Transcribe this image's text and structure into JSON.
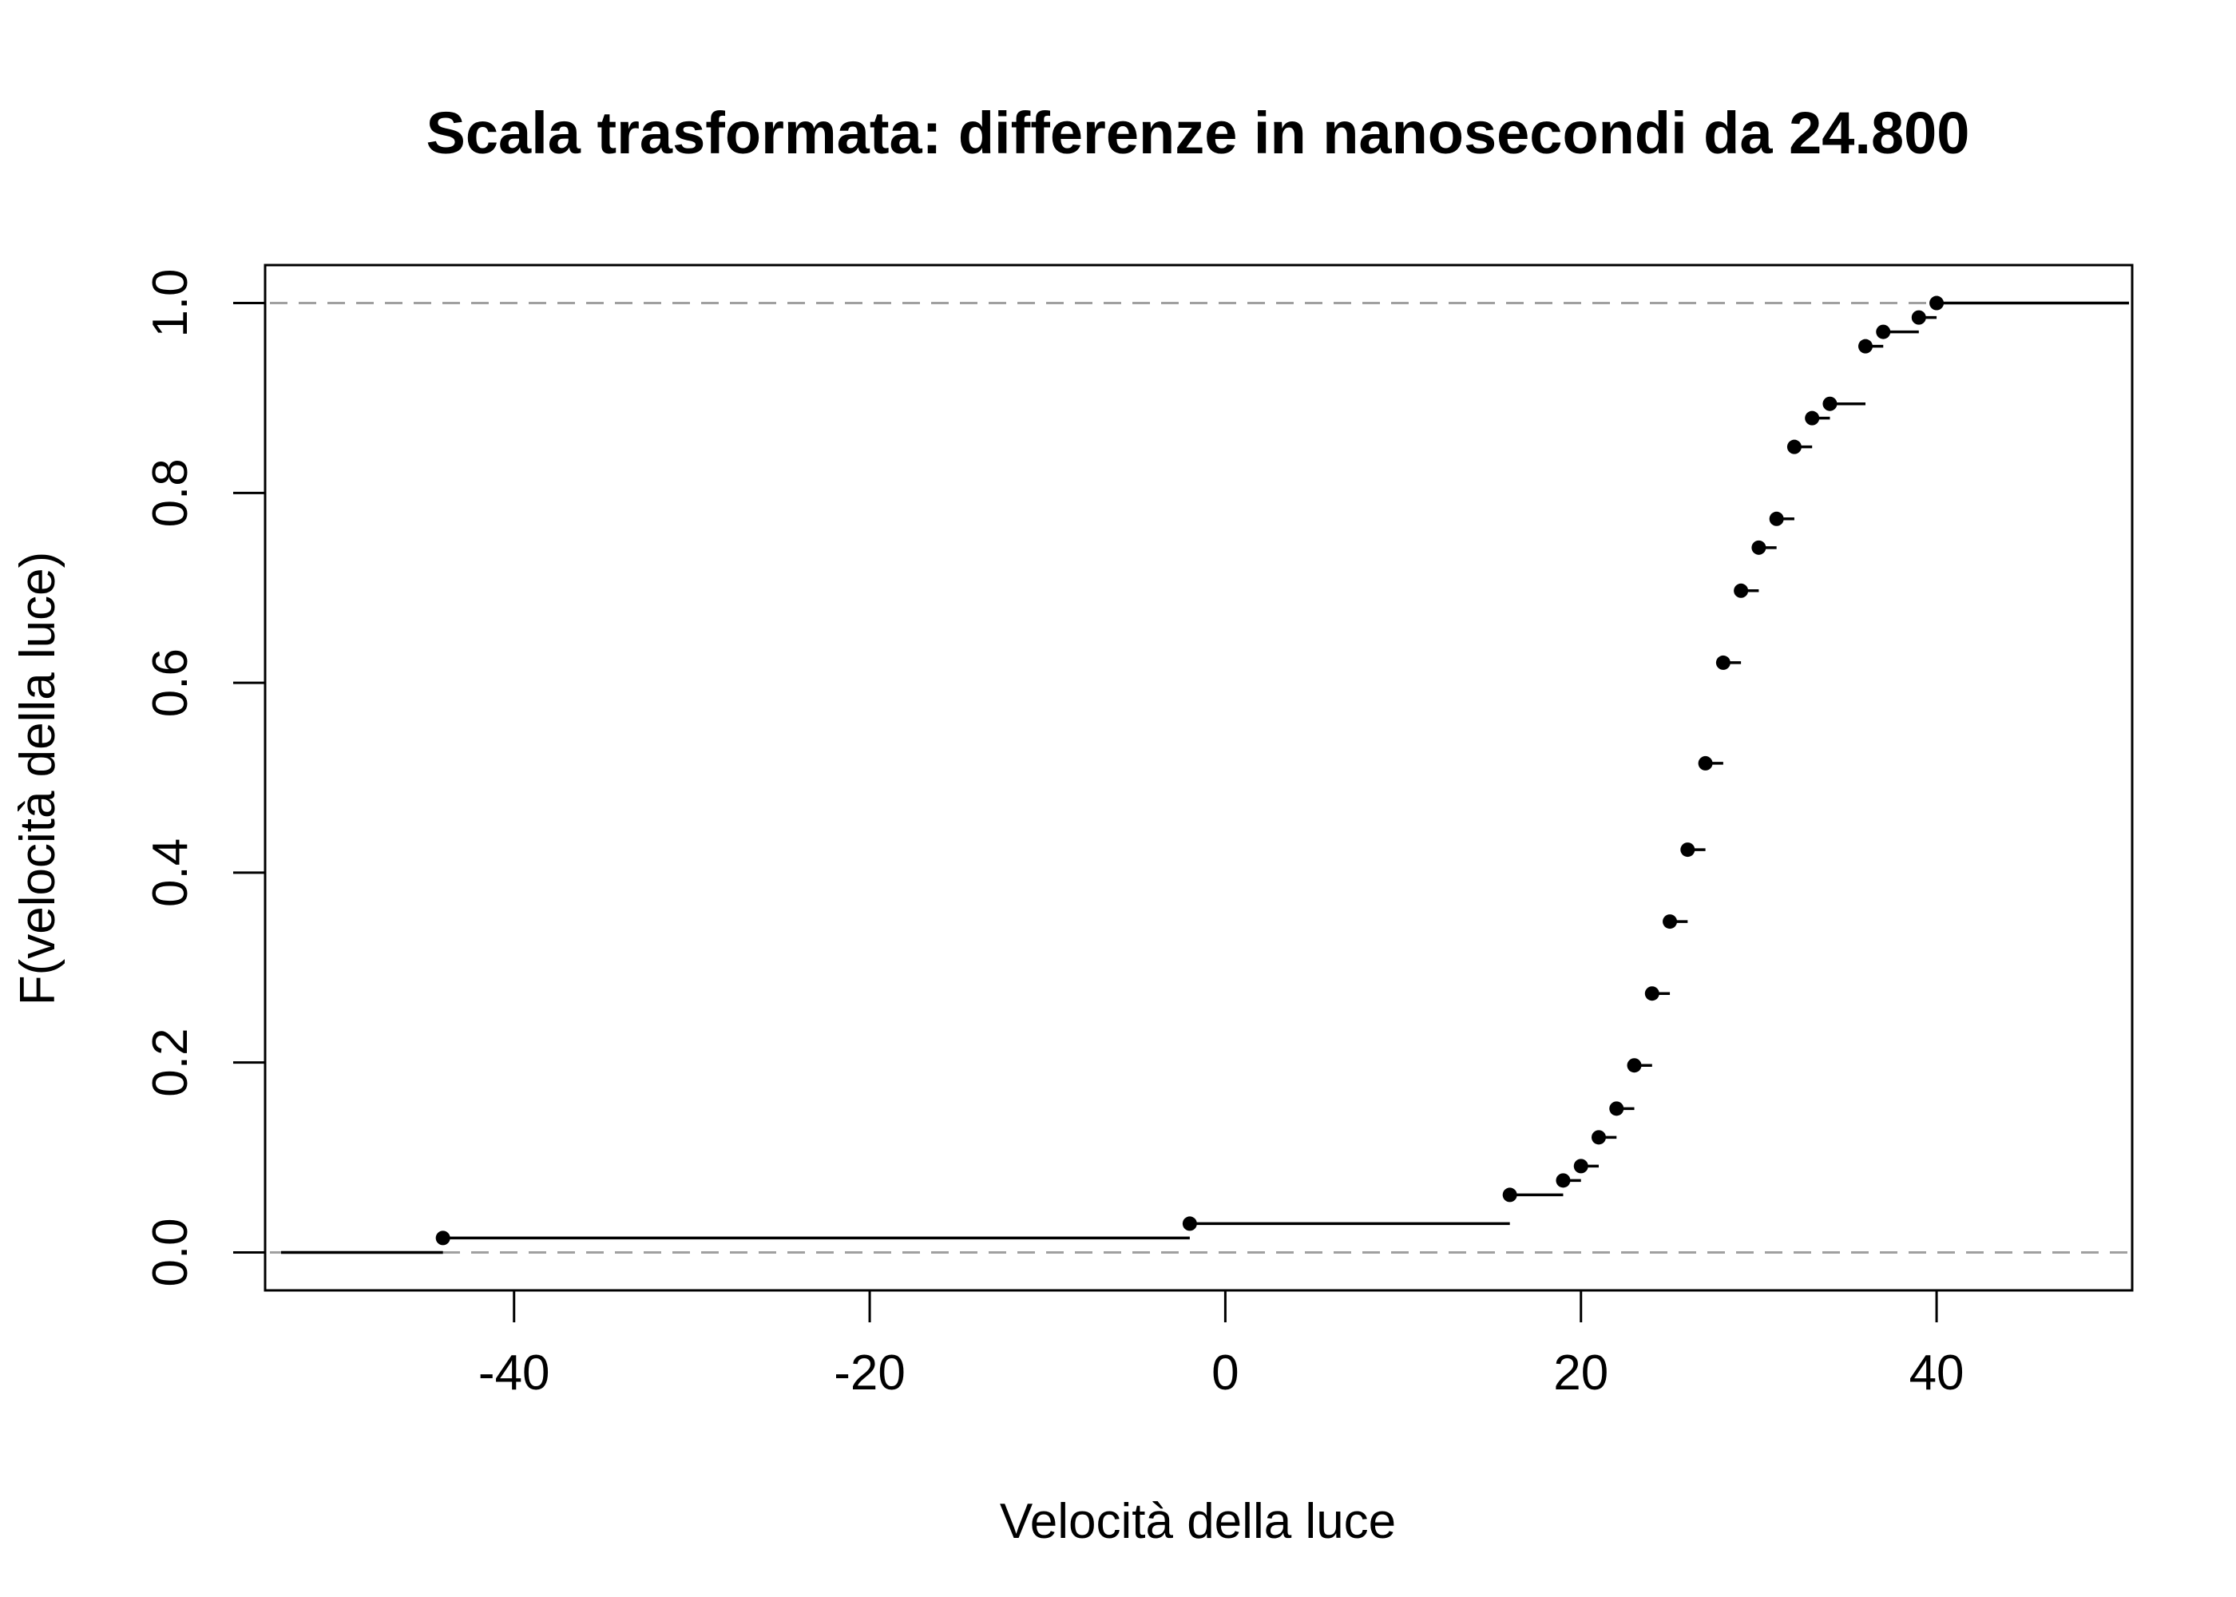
{
  "chart_data": {
    "type": "step",
    "title": "Scala trasformata: differenze in nanosecondi da 24.800",
    "xlabel": "Velocità della luce",
    "ylabel": "F(velocità della luce)",
    "xlim": [
      -54,
      51
    ],
    "ylim": [
      -0.04,
      1.04
    ],
    "x_ticks": [
      -40,
      -20,
      0,
      20,
      40
    ],
    "y_ticks": [
      0.0,
      0.2,
      0.4,
      0.6,
      0.8,
      1.0
    ],
    "x_tick_labels": [
      "-40",
      "-20",
      "0",
      "20",
      "40"
    ],
    "y_tick_labels": [
      "0.0",
      "0.2",
      "0.4",
      "0.6",
      "0.8",
      "1.0"
    ],
    "reference_lines": [
      0,
      1
    ],
    "reference_line_color": "#a0a0a0",
    "line_color": "#000000",
    "points": [
      {
        "x": -44,
        "y": 0.0152
      },
      {
        "x": -2,
        "y": 0.0303
      },
      {
        "x": 16,
        "y": 0.0606
      },
      {
        "x": 19,
        "y": 0.0758
      },
      {
        "x": 20,
        "y": 0.0909
      },
      {
        "x": 21,
        "y": 0.1212
      },
      {
        "x": 22,
        "y": 0.1515
      },
      {
        "x": 23,
        "y": 0.197
      },
      {
        "x": 24,
        "y": 0.2727
      },
      {
        "x": 25,
        "y": 0.3485
      },
      {
        "x": 26,
        "y": 0.4242
      },
      {
        "x": 27,
        "y": 0.5152
      },
      {
        "x": 28,
        "y": 0.6212
      },
      {
        "x": 29,
        "y": 0.697
      },
      {
        "x": 30,
        "y": 0.7424
      },
      {
        "x": 31,
        "y": 0.7727
      },
      {
        "x": 32,
        "y": 0.8485
      },
      {
        "x": 33,
        "y": 0.8788
      },
      {
        "x": 34,
        "y": 0.8939
      },
      {
        "x": 36,
        "y": 0.9545
      },
      {
        "x": 37,
        "y": 0.9697
      },
      {
        "x": 39,
        "y": 0.9848
      },
      {
        "x": 40,
        "y": 1.0
      }
    ]
  }
}
